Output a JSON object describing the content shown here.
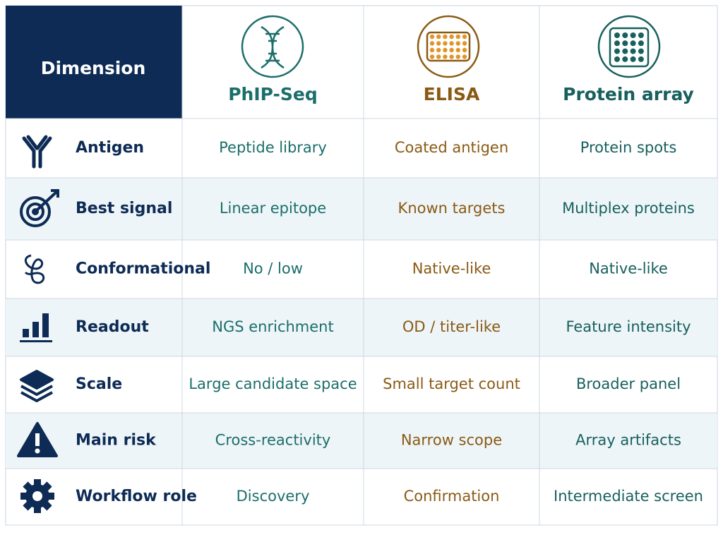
{
  "header": {
    "dimension": "Dimension",
    "columns": [
      "PhIP-Seq",
      "ELISA",
      "Protein array"
    ]
  },
  "rows": [
    {
      "label": "Antigen",
      "cells": [
        "Peptide library",
        "Coated antigen",
        "Protein spots"
      ]
    },
    {
      "label": "Best signal",
      "cells": [
        "Linear epitope",
        "Known targets",
        "Multiplex proteins"
      ]
    },
    {
      "label": "Conformational",
      "cells": [
        "No / low",
        "Native-like",
        "Native-like"
      ]
    },
    {
      "label": "Readout",
      "cells": [
        "NGS enrichment",
        "OD / titer-like",
        "Feature intensity"
      ]
    },
    {
      "label": "Scale",
      "cells": [
        "Large candidate space",
        "Small target count",
        "Broader panel"
      ]
    },
    {
      "label": "Main risk",
      "cells": [
        "Cross-reactivity",
        "Narrow scope",
        "Array artifacts"
      ]
    },
    {
      "label": "Workflow role",
      "cells": [
        "Discovery",
        "Confirmation",
        "Intermediate screen"
      ]
    }
  ]
}
